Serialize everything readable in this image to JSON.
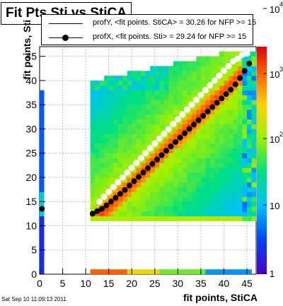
{
  "chart_data": {
    "type": "heatmap",
    "title": "Fit Pts Sti vs StiCA",
    "xlabel": "fit points, StiCA",
    "ylabel": "fit points, Sti",
    "xlim": [
      0,
      47
    ],
    "ylim": [
      0,
      47
    ],
    "x_ticks": [
      "0",
      "5",
      "10",
      "15",
      "20",
      "25",
      "30",
      "35",
      "40",
      "45"
    ],
    "y_ticks": [
      "0",
      "5",
      "10",
      "15",
      "20",
      "25",
      "30",
      "35",
      "40",
      "45"
    ],
    "z_scale": "log",
    "z_ticks": [
      {
        "label": "1",
        "exp": ""
      },
      {
        "label": "10",
        "exp": ""
      },
      {
        "label": "10",
        "exp": "2"
      },
      {
        "label": "10",
        "exp": "3"
      },
      {
        "label": "10",
        "exp": "4"
      }
    ],
    "series": [
      {
        "name": "profY, <fit points. StiCA> =   30.26 for NFP >= 15",
        "marker": "open-circle",
        "color": "#ffffff",
        "points": [
          [
            13,
            15
          ],
          [
            14,
            16
          ],
          [
            15,
            17
          ],
          [
            16,
            18
          ],
          [
            17,
            19
          ],
          [
            18,
            20
          ],
          [
            19,
            21
          ],
          [
            20,
            22
          ],
          [
            21,
            23
          ],
          [
            22,
            24
          ],
          [
            23,
            25
          ],
          [
            24,
            26
          ],
          [
            25,
            27
          ],
          [
            26,
            28
          ],
          [
            27,
            29
          ],
          [
            28,
            30
          ],
          [
            29,
            31
          ],
          [
            30,
            32
          ],
          [
            31,
            33
          ],
          [
            32,
            34
          ],
          [
            33,
            35
          ],
          [
            34,
            36
          ],
          [
            35,
            37
          ],
          [
            36,
            38
          ],
          [
            37,
            39
          ],
          [
            38,
            40
          ],
          [
            39,
            41
          ],
          [
            40,
            42
          ],
          [
            41,
            43
          ],
          [
            42,
            44
          ],
          [
            43,
            44.5
          ],
          [
            44,
            45.3
          ],
          [
            45,
            45.6
          ]
        ]
      },
      {
        "name": "profX, <fit points. Sti> =   29.24 for NFP >= 15",
        "marker": "filled-circle",
        "color": "#000000",
        "points": [
          [
            11.5,
            12.5
          ],
          [
            12.5,
            13
          ],
          [
            13.5,
            13.5
          ],
          [
            14.5,
            14.2
          ],
          [
            15.5,
            15
          ],
          [
            16.5,
            15.8
          ],
          [
            17.5,
            16.6
          ],
          [
            18.5,
            17.4
          ],
          [
            19.5,
            18.3
          ],
          [
            20.5,
            19.2
          ],
          [
            21.5,
            20.1
          ],
          [
            22.5,
            21
          ],
          [
            23.5,
            21.9
          ],
          [
            24.5,
            22.8
          ],
          [
            25.5,
            23.7
          ],
          [
            26.5,
            24.6
          ],
          [
            27.5,
            25.5
          ],
          [
            28.5,
            26.4
          ],
          [
            29.5,
            27.3
          ],
          [
            30.5,
            28.2
          ],
          [
            31.5,
            29.1
          ],
          [
            32.5,
            30
          ],
          [
            33.5,
            30.9
          ],
          [
            34.5,
            31.8
          ],
          [
            35.5,
            32.7
          ],
          [
            36.5,
            33.6
          ],
          [
            37.5,
            34.5
          ],
          [
            38.5,
            35.4
          ],
          [
            39.5,
            36.3
          ],
          [
            40.5,
            37.2
          ],
          [
            41.5,
            38.1
          ],
          [
            42.5,
            39.2
          ],
          [
            43.5,
            40.5
          ],
          [
            44.5,
            42
          ],
          [
            45.5,
            43.5
          ],
          [
            0.5,
            13.5
          ]
        ]
      }
    ]
  },
  "timestamp": "Sat Sep 10 11:09:13 2011"
}
